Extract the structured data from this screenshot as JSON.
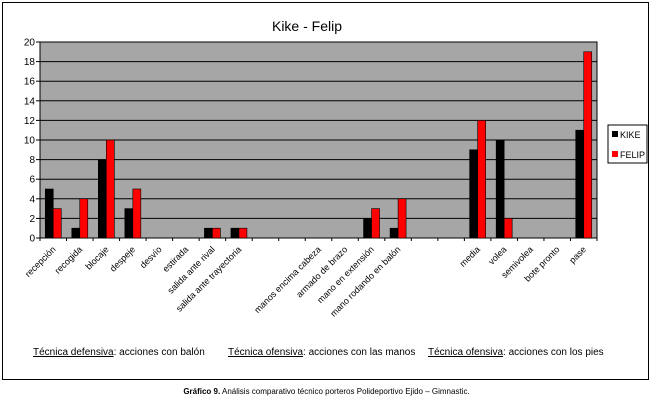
{
  "chart_data": {
    "type": "bar",
    "title": "Kike - Felip",
    "ylim": [
      0,
      20
    ],
    "yticks": [
      0,
      2,
      4,
      6,
      8,
      10,
      12,
      14,
      16,
      18,
      20
    ],
    "grid": true,
    "legend_position": "right",
    "categories": [
      "recepción",
      "recogida",
      "blocaje",
      "despeje",
      "desvío",
      "estirada",
      "salida ante rival",
      "salida ante trayectoria",
      "",
      "",
      "manos encima cabeza",
      "armado de brazo",
      "mano en extensión",
      "mano rodando en balón",
      "",
      "",
      "media",
      "volea",
      "semivolea",
      "bote pronto",
      "pase"
    ],
    "series": [
      {
        "name": "KIKE",
        "color": "#000000",
        "values": [
          5,
          1,
          8,
          3,
          0,
          0,
          1,
          1,
          null,
          null,
          0,
          0,
          2,
          1,
          null,
          null,
          9,
          10,
          0,
          0,
          11
        ]
      },
      {
        "name": "FELIP",
        "color": "#ff0000",
        "values": [
          3,
          4,
          10,
          5,
          0,
          0,
          1,
          1,
          null,
          null,
          0,
          0,
          3,
          4,
          null,
          null,
          12,
          2,
          0,
          0,
          19
        ]
      }
    ]
  },
  "groups": [
    {
      "underlined": "Técnica defensiva",
      "rest": ": acciones con balón"
    },
    {
      "underlined": "Técnica ofensiva",
      "rest": ": acciones con las manos"
    },
    {
      "underlined": "Técnica ofensiva",
      "rest": ": acciones con los pies"
    }
  ],
  "caption": {
    "bold": "Gráfico 9.",
    "text": " Análisis comparativo técnico porteros Polideportivo Ejido – Gimnastic."
  },
  "colors": {
    "plot_background": "#a6a6a6",
    "bar_kike": "#000000",
    "bar_felip": "#ff0000"
  }
}
